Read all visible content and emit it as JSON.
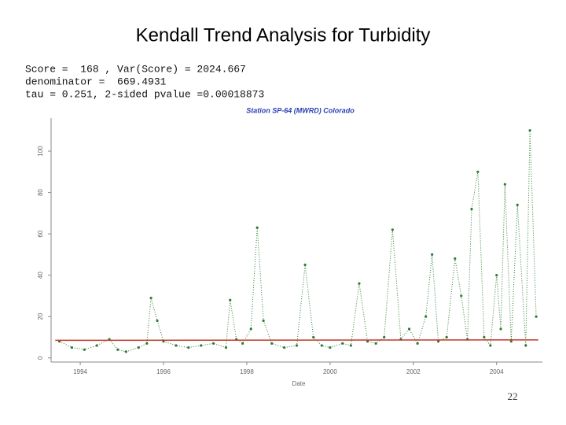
{
  "header": {
    "title": "Kendall Trend Analysis for Turbidity"
  },
  "stats": [
    "Score =  168 , Var(Score) = 2024.667",
    "denominator =  669.4931",
    "tau = 0.251, 2-sided pvalue =0.00018873"
  ],
  "page_number": "22",
  "chart_data": {
    "type": "scatter",
    "title": "Station SP-64 (MWRD) Colorado",
    "x_label": "Date",
    "xlim": [
      1993.3,
      2005.1
    ],
    "xticks": [
      1994,
      1996,
      1998,
      2000,
      2002,
      2004
    ],
    "ylim": [
      -2,
      116
    ],
    "yticks": [
      0,
      20,
      40,
      60,
      80,
      100
    ],
    "series": [
      {
        "name": "Turbidity",
        "color": "#2e7d32",
        "x": [
          1993.5,
          1993.8,
          1994.1,
          1994.4,
          1994.7,
          1994.9,
          1995.1,
          1995.4,
          1995.6,
          1995.7,
          1995.85,
          1996.0,
          1996.3,
          1996.6,
          1996.9,
          1997.2,
          1997.5,
          1997.6,
          1997.75,
          1997.9,
          1998.1,
          1998.25,
          1998.4,
          1998.6,
          1998.9,
          1999.2,
          1999.4,
          1999.6,
          1999.8,
          2000.0,
          2000.3,
          2000.5,
          2000.7,
          2000.9,
          2001.1,
          2001.3,
          2001.5,
          2001.7,
          2001.9,
          2002.1,
          2002.3,
          2002.45,
          2002.6,
          2002.8,
          2003.0,
          2003.15,
          2003.3,
          2003.4,
          2003.55,
          2003.7,
          2003.85,
          2004.0,
          2004.1,
          2004.2,
          2004.35,
          2004.5,
          2004.7,
          2004.8,
          2004.95
        ],
        "values": [
          8,
          5,
          4,
          6,
          9,
          4,
          3,
          5,
          7,
          29,
          18,
          8,
          6,
          5,
          6,
          7,
          5,
          28,
          9,
          7,
          14,
          63,
          18,
          7,
          5,
          6,
          45,
          10,
          6,
          5,
          7,
          6,
          36,
          8,
          7,
          10,
          62,
          9,
          14,
          7,
          20,
          50,
          8,
          10,
          48,
          30,
          9,
          72,
          90,
          10,
          6,
          40,
          14,
          84,
          8,
          74,
          6,
          110,
          20
        ]
      },
      {
        "name": "Trend",
        "color": "#c0392b",
        "x": [
          1993.4,
          2005.0
        ],
        "values": [
          8.5,
          8.7
        ]
      }
    ]
  }
}
